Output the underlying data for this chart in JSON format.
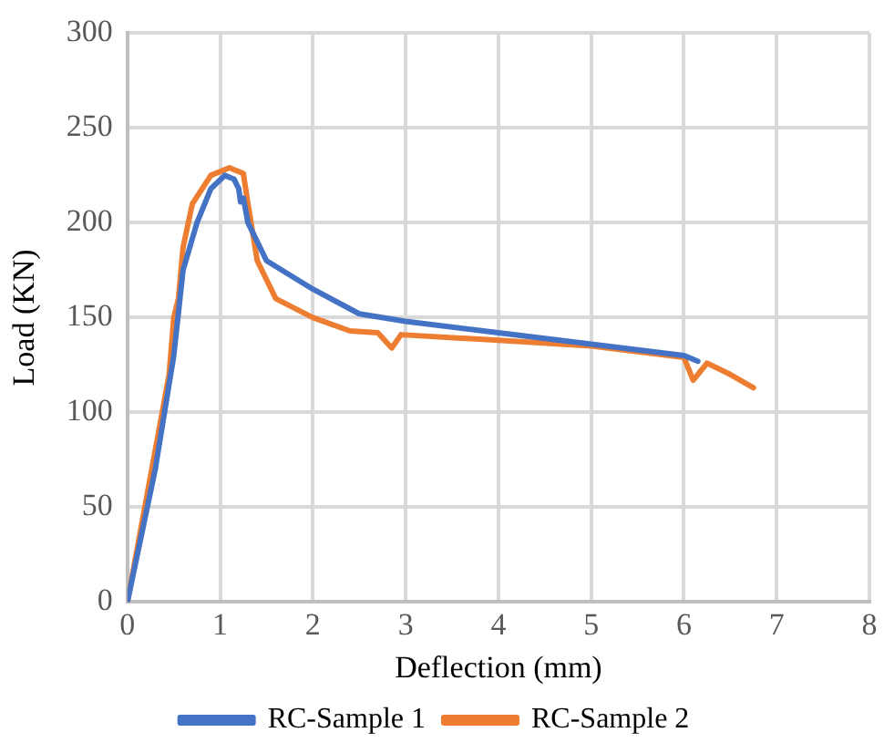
{
  "chart_data": {
    "type": "line",
    "xlabel": "Deflection (mm)",
    "ylabel": "Load (KN)",
    "xlim": [
      0,
      8
    ],
    "xticks": [
      0,
      1,
      2,
      3,
      4,
      5,
      6,
      7,
      8
    ],
    "ylim": [
      0,
      300
    ],
    "yticks": [
      0,
      50,
      100,
      150,
      200,
      250,
      300
    ],
    "grid": true,
    "legend": "bottom",
    "marker": "none",
    "line_style": "solid",
    "series": [
      {
        "name": "RC-Sample 1",
        "color": "#4472c4",
        "x": [
          0,
          0.3,
          0.5,
          0.6,
          0.75,
          0.9,
          1.05,
          1.15,
          1.2,
          1.22,
          1.25,
          1.3,
          1.5,
          2,
          2.5,
          3,
          4,
          5,
          6,
          6.15
        ],
        "values": [
          0,
          70,
          130,
          175,
          200,
          218,
          225,
          223,
          218,
          211,
          213,
          200,
          180,
          165,
          152,
          148,
          142,
          136,
          130,
          127
        ]
      },
      {
        "name": "RC-Sample 2",
        "color": "#ed7d31",
        "x": [
          0,
          0.3,
          0.45,
          0.5,
          0.55,
          0.6,
          0.7,
          0.9,
          1.1,
          1.25,
          1.3,
          1.4,
          1.6,
          2,
          2.4,
          2.7,
          2.85,
          2.95,
          4,
          5,
          6,
          6.1,
          6.25,
          6.5,
          6.75
        ],
        "values": [
          0,
          80,
          120,
          150,
          160,
          187,
          210,
          225,
          229,
          226,
          210,
          180,
          160,
          150,
          143,
          142,
          134,
          141,
          138,
          135,
          129,
          117,
          126,
          120,
          113
        ]
      }
    ]
  }
}
